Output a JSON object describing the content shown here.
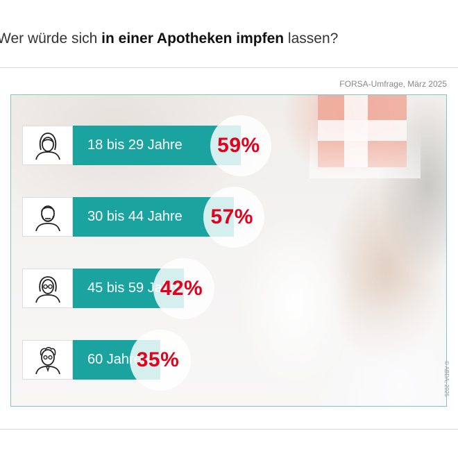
{
  "title": {
    "part1": "Wer würde ",
    "part2": "sich ",
    "bold": "in einer Apotheken impfen",
    "part3": " lassen?"
  },
  "source": "FORSA-Umfrage, März 2025",
  "credit": "© ABDA, 2025",
  "colors": {
    "bar": "#1aa39f",
    "value": "#e3001b",
    "frame": "#7fc7c6"
  },
  "chart_data": {
    "type": "bar",
    "orientation": "horizontal",
    "categories": [
      "18 bis 29 Jahre",
      "30 bis 44 Jahre",
      "45 bis 59 Jahre",
      "60 Jahre +"
    ],
    "values": [
      59,
      57,
      42,
      35
    ],
    "value_labels": [
      "59%",
      "57%",
      "42%",
      "35%"
    ],
    "icons": [
      "young-woman-icon",
      "bearded-man-icon",
      "woman-with-glasses-icon",
      "senior-man-icon"
    ],
    "unit": "%"
  }
}
